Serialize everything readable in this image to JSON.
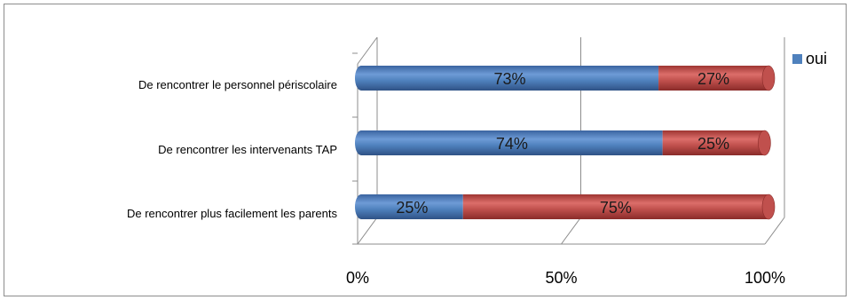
{
  "chart_data": {
    "type": "bar",
    "orientation": "horizontal",
    "stacking": "percent",
    "categories": [
      "De rencontrer le personnel  périscolaire",
      "De rencontrer  les intervenants TAP",
      "De rencontrer plus facilement les parents"
    ],
    "series": [
      {
        "name": "oui",
        "values": [
          73,
          74,
          25
        ],
        "labels": [
          "73%",
          "74%",
          "25%"
        ],
        "color": "#4f81bd"
      },
      {
        "name": "",
        "values": [
          27,
          25,
          75
        ],
        "labels": [
          "27%",
          "25%",
          "75%"
        ],
        "color": "#c0504d"
      }
    ],
    "xlim": [
      0,
      100
    ],
    "x_ticks": [
      "0%",
      "50%",
      "100%"
    ],
    "grid": true,
    "legend_position": "right",
    "title": "",
    "xlabel": "",
    "ylabel": ""
  }
}
